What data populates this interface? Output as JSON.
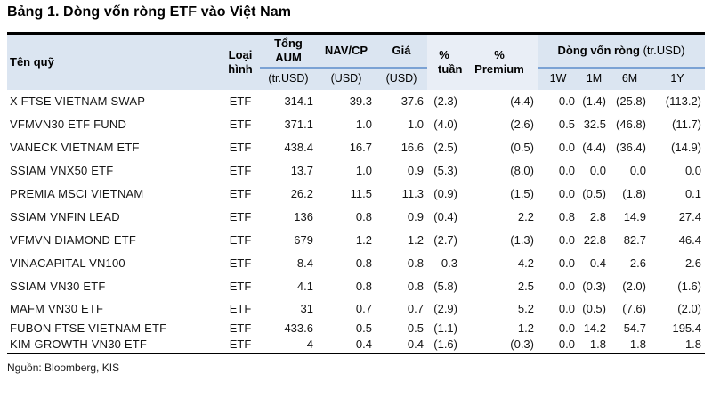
{
  "title": "Bảng 1. Dòng vốn ròng ETF vào Việt Nam",
  "source": "Nguồn: Bloomberg, KIS",
  "table": {
    "headers": {
      "fund": "Tên quỹ",
      "type": "Loại hình",
      "aum_label": "Tổng AUM",
      "aum_unit": "(tr.USD)",
      "nav_label": "NAV/CP",
      "nav_unit": "(USD)",
      "price_label": "Giá",
      "price_unit": "(USD)",
      "week_pct": "% tuần",
      "premium_pct": "% Premium",
      "flow_label": "Dòng vốn ròng",
      "flow_unit": "(tr.USD)",
      "flow_cols": [
        "1W",
        "1M",
        "6M",
        "1Y"
      ]
    },
    "rows": [
      {
        "name": "X FTSE VIETNAM SWAP",
        "type": "ETF",
        "values": [
          "314.1",
          "39.3",
          "37.6",
          "(2.3)",
          "(4.4)",
          "0.0",
          "(1.4)",
          "(25.8)",
          "(113.2)"
        ]
      },
      {
        "name": "VFMVN30 ETF FUND",
        "type": "ETF",
        "values": [
          "371.1",
          "1.0",
          "1.0",
          "(4.0)",
          "(2.6)",
          "0.5",
          "32.5",
          "(46.8)",
          "(11.7)"
        ]
      },
      {
        "name": "VANECK VIETNAM ETF",
        "type": "ETF",
        "values": [
          "438.4",
          "16.7",
          "16.6",
          "(2.5)",
          "(0.5)",
          "0.0",
          "(4.4)",
          "(36.4)",
          "(14.9)"
        ]
      },
      {
        "name": "SSIAM VNX50 ETF",
        "type": "ETF",
        "values": [
          "13.7",
          "1.0",
          "0.9",
          "(5.3)",
          "(8.0)",
          "0.0",
          "0.0",
          "0.0",
          "0.0"
        ]
      },
      {
        "name": "PREMIA MSCI VIETNAM",
        "type": "ETF",
        "values": [
          "26.2",
          "11.5",
          "11.3",
          "(0.9)",
          "(1.5)",
          "0.0",
          "(0.5)",
          "(1.8)",
          "0.1"
        ]
      },
      {
        "name": "SSIAM VNFIN LEAD",
        "type": "ETF",
        "values": [
          "136",
          "0.8",
          "0.9",
          "(0.4)",
          "2.2",
          "0.8",
          "2.8",
          "14.9",
          "27.4"
        ]
      },
      {
        "name": "VFMVN DIAMOND ETF",
        "type": "ETF",
        "values": [
          "679",
          "1.2",
          "1.2",
          "(2.7)",
          "(1.3)",
          "0.0",
          "22.8",
          "82.7",
          "46.4"
        ]
      },
      {
        "name": "VINACAPITAL VN100",
        "type": "ETF",
        "values": [
          "8.4",
          "0.8",
          "0.8",
          "0.3",
          "4.2",
          "0.0",
          "0.4",
          "2.6",
          "2.6"
        ]
      },
      {
        "name": "SSIAM VN30 ETF",
        "type": "ETF",
        "values": [
          "4.1",
          "0.8",
          "0.8",
          "(5.8)",
          "2.5",
          "0.0",
          "(0.3)",
          "(2.0)",
          "(1.6)"
        ]
      },
      {
        "name": "MAFM VN30 ETF",
        "type": "ETF",
        "values": [
          "31",
          "0.7",
          "0.7",
          "(2.9)",
          "5.2",
          "0.0",
          "(0.5)",
          "(7.6)",
          "(2.0)"
        ]
      },
      {
        "name": "FUBON FTSE VIETNAM ETF",
        "type": "ETF",
        "values": [
          "433.6",
          "0.5",
          "0.5",
          "(1.1)",
          "1.2",
          "0.0",
          "14.2",
          "54.7",
          "195.4"
        ]
      },
      {
        "name": "KIM GROWTH VN30 ETF",
        "type": "ETF",
        "values": [
          "4",
          "0.4",
          "0.4",
          "(1.6)",
          "(0.3)",
          "0.0",
          "1.8",
          "1.8",
          "1.8"
        ]
      }
    ]
  }
}
